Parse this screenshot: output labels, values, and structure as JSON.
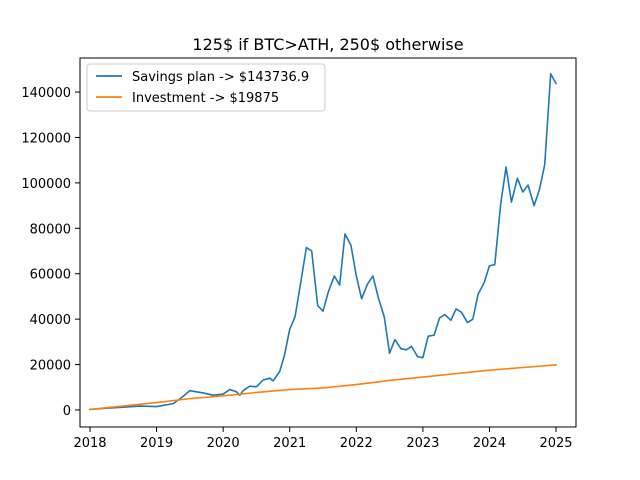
{
  "chart_data": {
    "type": "line",
    "title": "125$ if BTC>ATH, 250$ otherwise",
    "xlabel": "",
    "ylabel": "",
    "xlim": [
      2017.85,
      2025.3
    ],
    "ylim": [
      -7500,
      155000
    ],
    "xticks": [
      2018,
      2019,
      2020,
      2021,
      2022,
      2023,
      2024,
      2025
    ],
    "xtick_labels": [
      "2018",
      "2019",
      "2020",
      "2021",
      "2022",
      "2023",
      "2024",
      "2025"
    ],
    "yticks": [
      0,
      20000,
      40000,
      60000,
      80000,
      100000,
      120000,
      140000
    ],
    "ytick_labels": [
      "0",
      "20000",
      "40000",
      "60000",
      "80000",
      "100000",
      "120000",
      "140000"
    ],
    "grid": false,
    "legend_position": "upper-left",
    "series": [
      {
        "name": "Savings plan -> $143736.9",
        "color": "#1f77b4",
        "points": [
          [
            2018.0,
            250
          ],
          [
            2018.25,
            800
          ],
          [
            2018.5,
            1200
          ],
          [
            2018.75,
            1700
          ],
          [
            2019.0,
            1500
          ],
          [
            2019.25,
            2800
          ],
          [
            2019.4,
            6000
          ],
          [
            2019.5,
            8500
          ],
          [
            2019.7,
            7500
          ],
          [
            2019.85,
            6500
          ],
          [
            2020.0,
            7000
          ],
          [
            2020.1,
            9000
          ],
          [
            2020.2,
            8000
          ],
          [
            2020.25,
            6500
          ],
          [
            2020.3,
            8500
          ],
          [
            2020.4,
            10500
          ],
          [
            2020.5,
            10200
          ],
          [
            2020.6,
            13200
          ],
          [
            2020.7,
            14000
          ],
          [
            2020.75,
            12800
          ],
          [
            2020.85,
            17000
          ],
          [
            2020.92,
            24000
          ],
          [
            2021.0,
            35500
          ],
          [
            2021.08,
            41000
          ],
          [
            2021.17,
            57000
          ],
          [
            2021.25,
            71500
          ],
          [
            2021.33,
            70000
          ],
          [
            2021.42,
            46000
          ],
          [
            2021.5,
            43500
          ],
          [
            2021.58,
            52000
          ],
          [
            2021.67,
            59000
          ],
          [
            2021.75,
            55000
          ],
          [
            2021.83,
            77500
          ],
          [
            2021.92,
            72500
          ],
          [
            2022.0,
            59000
          ],
          [
            2022.08,
            49000
          ],
          [
            2022.17,
            55500
          ],
          [
            2022.25,
            59000
          ],
          [
            2022.33,
            49500
          ],
          [
            2022.42,
            41000
          ],
          [
            2022.5,
            25000
          ],
          [
            2022.58,
            31000
          ],
          [
            2022.67,
            27000
          ],
          [
            2022.75,
            26500
          ],
          [
            2022.83,
            28000
          ],
          [
            2022.92,
            23500
          ],
          [
            2023.0,
            23000
          ],
          [
            2023.08,
            32500
          ],
          [
            2023.17,
            33000
          ],
          [
            2023.25,
            40500
          ],
          [
            2023.33,
            42000
          ],
          [
            2023.42,
            39500
          ],
          [
            2023.5,
            44500
          ],
          [
            2023.58,
            43000
          ],
          [
            2023.67,
            38500
          ],
          [
            2023.75,
            40000
          ],
          [
            2023.83,
            51000
          ],
          [
            2023.92,
            56000
          ],
          [
            2024.0,
            63500
          ],
          [
            2024.08,
            64000
          ],
          [
            2024.17,
            91000
          ],
          [
            2024.25,
            107000
          ],
          [
            2024.33,
            91500
          ],
          [
            2024.42,
            102000
          ],
          [
            2024.5,
            96000
          ],
          [
            2024.58,
            99000
          ],
          [
            2024.67,
            90000
          ],
          [
            2024.75,
            97000
          ],
          [
            2024.83,
            108000
          ],
          [
            2024.92,
            148000
          ],
          [
            2025.0,
            143737
          ]
        ]
      },
      {
        "name": "Investment -> $19875",
        "color": "#ff7f0e",
        "points": [
          [
            2018.0,
            250
          ],
          [
            2019.0,
            3250
          ],
          [
            2019.5,
            5000
          ],
          [
            2020.0,
            6250
          ],
          [
            2020.5,
            7700
          ],
          [
            2021.0,
            9000
          ],
          [
            2021.5,
            9700
          ],
          [
            2022.0,
            11200
          ],
          [
            2022.5,
            13000
          ],
          [
            2023.0,
            14500
          ],
          [
            2023.5,
            16000
          ],
          [
            2024.0,
            17500
          ],
          [
            2024.5,
            18700
          ],
          [
            2025.0,
            19875
          ]
        ]
      }
    ]
  }
}
